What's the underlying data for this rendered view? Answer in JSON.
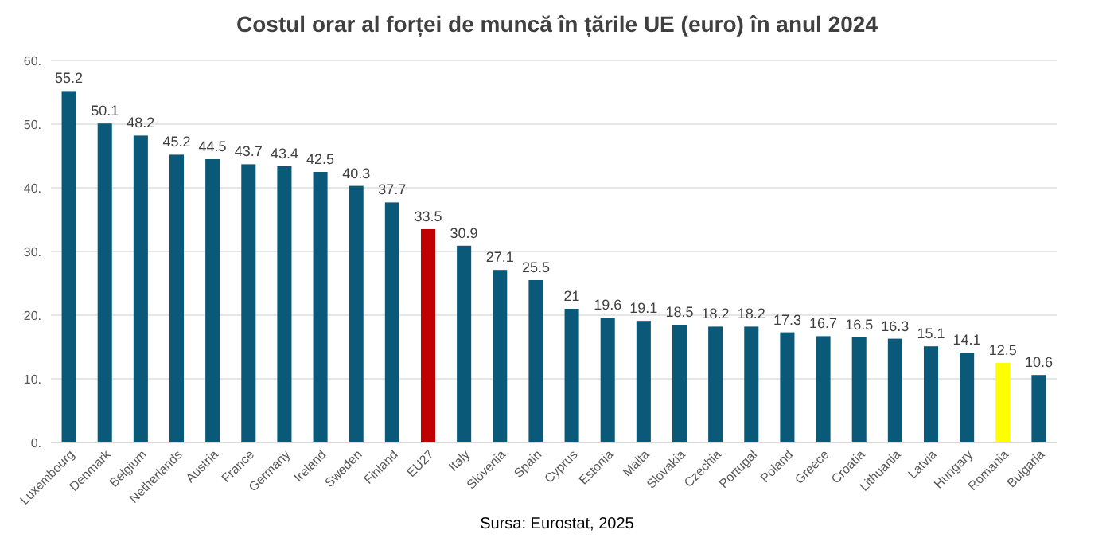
{
  "chart_data": {
    "type": "bar",
    "title": "Costul orar al forței de muncă în țările UE (euro) în anul 2024",
    "categories": [
      "Luxembourg",
      "Denmark",
      "Belgium",
      "Netherlands",
      "Austria",
      "France",
      "Germany",
      "Ireland",
      "Sweden",
      "Finland",
      "EU27",
      "Italy",
      "Slovenia",
      "Spain",
      "Cyprus",
      "Estonia",
      "Malta",
      "Slovakia",
      "Czechia",
      "Portugal",
      "Poland",
      "Greece",
      "Croatia",
      "Lithuania",
      "Latvia",
      "Hungary",
      "Romania",
      "Bulgaria"
    ],
    "values": [
      55.2,
      50.1,
      48.2,
      45.2,
      44.5,
      43.7,
      43.4,
      42.5,
      40.3,
      37.7,
      33.5,
      30.9,
      27.1,
      25.5,
      21,
      19.6,
      19.1,
      18.5,
      18.2,
      18.2,
      17.3,
      16.7,
      16.5,
      16.3,
      15.1,
      14.1,
      12.5,
      10.6
    ],
    "colors": [
      "#0b5979",
      "#0b5979",
      "#0b5979",
      "#0b5979",
      "#0b5979",
      "#0b5979",
      "#0b5979",
      "#0b5979",
      "#0b5979",
      "#0b5979",
      "#c00000",
      "#0b5979",
      "#0b5979",
      "#0b5979",
      "#0b5979",
      "#0b5979",
      "#0b5979",
      "#0b5979",
      "#0b5979",
      "#0b5979",
      "#0b5979",
      "#0b5979",
      "#0b5979",
      "#0b5979",
      "#0b5979",
      "#0b5979",
      "#ffff00",
      "#0b5979"
    ],
    "ylim": [
      0,
      60
    ],
    "yticks": [
      {
        "value": 0,
        "label": "0."
      },
      {
        "value": 10,
        "label": "10."
      },
      {
        "value": 20,
        "label": "20."
      },
      {
        "value": 30,
        "label": "30."
      },
      {
        "value": 40,
        "label": "40."
      },
      {
        "value": 50,
        "label": "50."
      },
      {
        "value": 60,
        "label": "60."
      }
    ],
    "grid": "y",
    "data_labels": true,
    "annotations": [
      "Sursa: Eurostat, 2025"
    ]
  }
}
